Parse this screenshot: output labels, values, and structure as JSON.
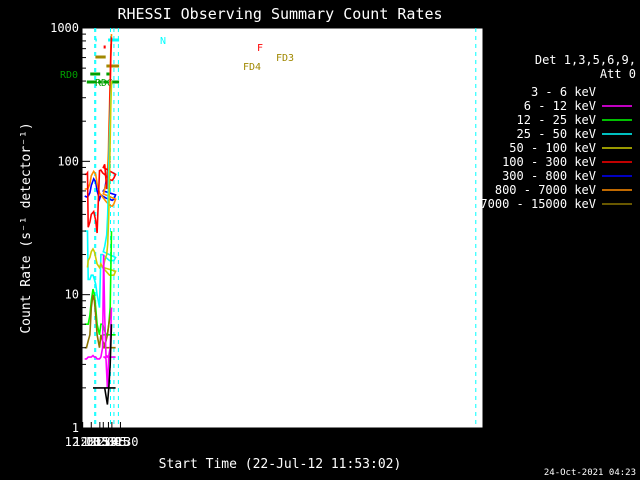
{
  "chart_data": {
    "type": "line",
    "title": "RHESSI Observing Summary Count Rates",
    "xlabel": "Start Time (22-Jul-12 11:53:02)",
    "ylabel": "Count Rate (s⁻¹ detector⁻¹)",
    "x_unit": "minutes",
    "xlim": [
      11.58,
      30.86
    ],
    "ylim": [
      1,
      1000
    ],
    "yscale": "log",
    "x_ticks": [
      {
        "value": 12.0,
        "label": "12:00"
      },
      {
        "value": 12.25,
        "label": "12:15"
      },
      {
        "value": 12.5,
        "label": "12:30"
      },
      {
        "value": 12.75,
        "label": "12:45"
      },
      {
        "value": 13.0,
        "label": "13:00"
      },
      {
        "value": 13.25,
        "label": "13:15"
      },
      {
        "value": 13.5,
        "label": "13:30"
      }
    ],
    "y_ticks": [
      {
        "value": 1,
        "label": "1"
      },
      {
        "value": 10,
        "label": "10"
      },
      {
        "value": 100,
        "label": "100"
      },
      {
        "value": 1000,
        "label": "1000"
      }
    ],
    "legend": {
      "header_line1": "Det 1,3,5,6,9,",
      "header_line2": "Att 0",
      "placement": "right",
      "entries": [
        {
          "label": "3 - 6 keV",
          "color": "#000000"
        },
        {
          "label": "6 - 12 keV",
          "color": "#ff00ff"
        },
        {
          "label": "12 - 25 keV",
          "color": "#00ff00"
        },
        {
          "label": "25 - 50 keV",
          "color": "#00ffff"
        },
        {
          "label": "50 - 100 keV",
          "color": "#cccc00"
        },
        {
          "label": "100 - 300 keV",
          "color": "#ff0000"
        },
        {
          "label": "300 - 800 keV",
          "color": "#0000ff"
        },
        {
          "label": "800 - 7000 keV",
          "color": "#ff8c00"
        },
        {
          "label": "7000 - 15000 keV",
          "color": "#8b7500"
        }
      ]
    },
    "flags": [
      {
        "label": "N",
        "color": "#00ffff",
        "segments": [
          [
            11.97,
            12.41
          ],
          [
            13.14,
            13.46
          ]
        ]
      },
      {
        "label": "F",
        "color": "#ff0000",
        "segments": [
          [
            12.61,
            12.67
          ]
        ]
      },
      {
        "label": "FD3",
        "color": "#a08800",
        "segments": [
          [
            11.97,
            12.67
          ]
        ]
      },
      {
        "label": "FD4",
        "color": "#a08800",
        "segments": [
          [
            12.69,
            13.46
          ]
        ]
      },
      {
        "label": "RD0",
        "color": "#00a000",
        "segments": [
          [
            11.99,
            12.22
          ],
          [
            12.26,
            12.51
          ],
          [
            12.69,
            13.18
          ]
        ]
      },
      {
        "label": "RD6",
        "color": "#00a000",
        "segments": [
          [
            11.97,
            12.12
          ],
          [
            12.17,
            12.41
          ],
          [
            12.45,
            12.55
          ],
          [
            12.6,
            12.74
          ],
          [
            12.84,
            13.46
          ]
        ]
      }
    ],
    "vlines_minutes": [
      11.95,
      12.38,
      12.81,
      13.31,
      13.44,
      30.65
    ],
    "series": [
      {
        "name": "300 - 800 keV",
        "color": "#0000ff",
        "x": [
          12.06,
          12.11,
          12.16,
          12.21,
          12.25,
          12.32,
          12.38,
          12.42,
          12.49,
          12.53,
          12.58,
          12.68,
          12.78,
          12.86,
          12.91,
          12.96,
          13.0,
          13.04,
          13.1,
          13.12,
          13.15,
          13.19,
          13.2
        ],
        "y": [
          55,
          54,
          55,
          58,
          66,
          74,
          70,
          60,
          52,
          56,
          55,
          53,
          52,
          51,
          52,
          56,
          60,
          62,
          75,
          85,
          92,
          98,
          100
        ]
      },
      {
        "name": "800 - 7000 keV",
        "color": "#ff8c00",
        "x": [
          12.06,
          12.11,
          12.16,
          12.21,
          12.25,
          12.32,
          12.38,
          12.42,
          12.49,
          12.53,
          12.58,
          12.68,
          12.78,
          12.86,
          12.91,
          12.96,
          13.0,
          13.04,
          13.1,
          13.12,
          13.15,
          13.17,
          13.2,
          13.22,
          13.24
        ],
        "y": [
          62,
          62,
          63,
          68,
          78,
          84,
          80,
          68,
          58,
          56,
          54,
          50,
          47,
          46,
          48,
          52,
          57,
          62,
          70,
          80,
          120,
          200,
          400,
          700,
          900
        ]
      },
      {
        "name": "100 - 300 keV",
        "color": "#ff0000",
        "x": [
          12.06,
          12.11,
          12.14,
          12.16,
          12.21,
          12.25,
          12.32,
          12.38,
          12.42,
          12.49,
          12.53,
          12.58,
          12.68,
          12.78,
          12.86,
          12.91,
          12.96,
          13.0,
          13.04,
          13.1,
          13.13,
          13.16,
          13.19,
          13.22,
          13.24
        ],
        "y": [
          80,
          80,
          82,
          32,
          35,
          40,
          42,
          36,
          29,
          85,
          86,
          82,
          78,
          73,
          72,
          75,
          80,
          90,
          95,
          62,
          70,
          100,
          250,
          600,
          850
        ]
      },
      {
        "name": "25 - 50 keV",
        "color": "#00ffff",
        "x": [
          12.06,
          12.11,
          12.14,
          12.16,
          12.21,
          12.25,
          12.3,
          12.34,
          12.38,
          12.42,
          12.49,
          12.53,
          12.58,
          12.68,
          12.78,
          12.86,
          12.91,
          12.96,
          13.0,
          13.04,
          13.1,
          13.13,
          13.16,
          13.19,
          13.22,
          13.24
        ],
        "y": [
          30,
          30,
          30,
          13,
          13,
          14,
          14,
          13,
          12,
          10,
          8,
          20,
          20,
          19,
          18,
          18,
          18,
          19,
          21,
          23,
          28,
          40,
          90,
          180,
          300,
          400
        ]
      },
      {
        "name": "50 - 100 keV",
        "color": "#cccc00",
        "x": [
          12.14,
          12.16,
          12.21,
          12.25,
          12.3,
          12.34,
          12.38,
          12.42,
          12.49,
          12.53,
          12.58,
          12.68,
          12.78,
          12.86,
          12.91,
          12.96,
          13.0,
          13.04,
          13.1,
          13.13,
          13.16,
          13.19,
          13.22,
          13.24
        ],
        "y": [
          16,
          18,
          19,
          21,
          22,
          21,
          19,
          17,
          16,
          17,
          16,
          15,
          14,
          14,
          14,
          15,
          16,
          18,
          20,
          24,
          40,
          100,
          250,
          400
        ]
      },
      {
        "name": "12 - 25 keV",
        "color": "#00ff00",
        "x": [
          12.06,
          12.11,
          12.16,
          12.21,
          12.25,
          12.3,
          12.34,
          12.38,
          12.42,
          12.49,
          12.53,
          12.58,
          12.68,
          12.78,
          12.86,
          12.91,
          12.96,
          13.0,
          13.04,
          13.08,
          13.12,
          13.16,
          13.2,
          13.24
        ],
        "y": [
          6,
          6,
          6,
          7,
          9,
          11,
          10,
          8,
          6,
          5,
          6,
          6,
          5,
          5,
          5,
          5,
          5,
          5,
          5,
          5,
          5,
          6,
          8,
          30
        ]
      },
      {
        "name": "7000 - 15000 keV",
        "color": "#8b7500",
        "x": [
          12.06,
          12.11,
          12.16,
          12.21,
          12.25,
          12.3,
          12.34,
          12.38,
          12.42,
          12.49,
          12.53,
          12.58,
          12.68,
          12.78,
          12.86,
          12.91,
          12.96,
          13.0,
          13.04,
          13.08,
          13.12,
          13.16,
          13.2,
          13.24
        ],
        "y": [
          4,
          4,
          4.5,
          5,
          8,
          10,
          9,
          7,
          5,
          4,
          5,
          4.5,
          4,
          4,
          4,
          4,
          4,
          4,
          4.2,
          4.5,
          5,
          6,
          7,
          8
        ]
      },
      {
        "name": "6 - 12 keV",
        "color": "#ff00ff",
        "x": [
          12.06,
          12.11,
          12.16,
          12.21,
          12.25,
          12.3,
          12.34,
          12.38,
          12.42,
          12.49,
          12.53,
          12.58,
          12.61,
          12.64,
          12.68,
          12.78,
          12.86,
          12.91,
          12.96,
          13.0,
          13.04,
          13.08,
          13.12,
          13.16,
          13.2,
          13.24
        ],
        "y": [
          3.3,
          3.3,
          3.4,
          3.4,
          3.4,
          3.5,
          3.4,
          3.4,
          3.3,
          3.3,
          3.4,
          4,
          20,
          7,
          3.5,
          3.4,
          3.4,
          3.4,
          3.4,
          3.4,
          3.4,
          3.3,
          2,
          3.5,
          4,
          8
        ]
      },
      {
        "name": "3 - 6 keV",
        "color": "#000000",
        "x": [
          12.3,
          12.34,
          12.38,
          12.42,
          12.49,
          12.53,
          12.58,
          12.68,
          12.78,
          12.86,
          12.91,
          12.96,
          13.0,
          13.04,
          13.12,
          13.16,
          13.2,
          13.24
        ],
        "y": [
          2,
          2,
          2,
          2,
          2,
          2,
          2,
          2,
          2,
          2,
          2,
          2,
          2,
          2,
          1.5,
          2,
          3,
          6
        ]
      }
    ]
  },
  "footer": {
    "timestamp": "24-Oct-2021 04:23"
  }
}
